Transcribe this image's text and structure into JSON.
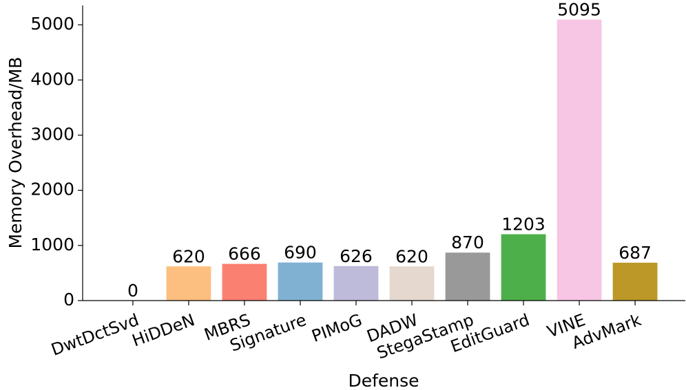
{
  "chart_data": {
    "type": "bar",
    "x_label": "Defense",
    "y_label": "Memory Overhead/MB",
    "categories": [
      "DwtDctSvd",
      "HiDDeN",
      "MBRS",
      "Signature",
      "PIMoG",
      "DADW",
      "StegaStamp",
      "EditGuard",
      "VINE",
      "AdvMark"
    ],
    "values": [
      0,
      620,
      666,
      690,
      626,
      620,
      870,
      1203,
      5095,
      687
    ],
    "colors": [
      "#8dd3c7",
      "#fdbf7f",
      "#fa8072",
      "#80b1d3",
      "#bebada",
      "#e5d8cf",
      "#999999",
      "#4daf4a",
      "#f7c6e4",
      "#bc9829"
    ],
    "ylim": [
      0,
      5350
    ],
    "yticks": [
      0,
      1000,
      2000,
      3000,
      4000,
      5000
    ],
    "grid": false
  }
}
